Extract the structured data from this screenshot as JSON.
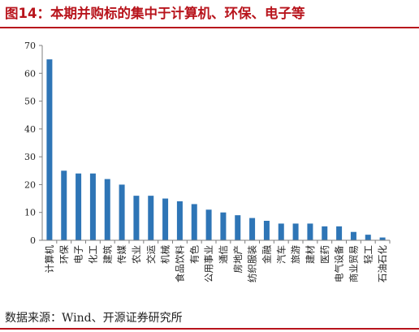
{
  "header": {
    "title": "图14：本期并购标的集中于计算机、环保、电子等"
  },
  "footer": {
    "source": "数据来源：Wind、开源证券研究所"
  },
  "colors": {
    "bar": "#2e75b6",
    "title": "#b8141c",
    "axis": "#7f7f7f"
  },
  "chart_data": {
    "type": "bar",
    "categories": [
      "计算机",
      "环保",
      "电子",
      "化工",
      "建筑",
      "传媒",
      "农业",
      "交运",
      "机械",
      "食品饮料",
      "有色",
      "公用事业",
      "通信",
      "房地产",
      "纺织服装",
      "金融",
      "汽车",
      "旅游",
      "建材",
      "医药",
      "电气设备",
      "商业贸易",
      "轻工",
      "石油石化"
    ],
    "values": [
      65,
      25,
      24,
      24,
      22,
      20,
      16,
      16,
      15,
      14,
      13,
      11,
      10,
      9,
      8,
      7,
      6,
      6,
      6,
      5,
      5,
      3,
      2,
      1
    ],
    "title": "",
    "xlabel": "",
    "ylabel": "",
    "ylim": [
      0,
      70
    ],
    "yticks": [
      0,
      10,
      20,
      30,
      40,
      50,
      60,
      70
    ],
    "grid": false,
    "legend": "none"
  }
}
